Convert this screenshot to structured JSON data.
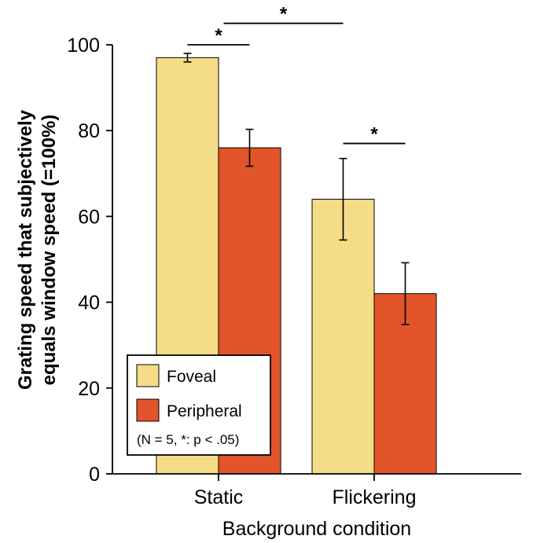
{
  "chart_data": {
    "type": "bar",
    "categories": [
      "Static",
      "Flickering"
    ],
    "series": [
      {
        "name": "Foveal",
        "values": [
          97,
          64
        ],
        "errors": [
          1,
          9.5
        ]
      },
      {
        "name": "Peripheral",
        "values": [
          76,
          42
        ],
        "errors": [
          4.3,
          7.2
        ]
      }
    ],
    "xlabel": "Background condition",
    "ylabel": [
      "Grating speed that subjectively",
      "equals window speed (=100%)"
    ],
    "ylim": [
      0,
      100
    ],
    "yticks": [
      0,
      20,
      40,
      60,
      80,
      100
    ],
    "grid": false,
    "legend": {
      "placement": "bottom-left",
      "note": "(N = 5, *: p < .05)"
    },
    "significance": [
      {
        "label": "*",
        "between": "Static Foveal vs Static Peripheral",
        "y": 100
      },
      {
        "label": "*",
        "between": "Static vs Flickering",
        "y": 105
      },
      {
        "label": "*",
        "between": "Flickering Foveal vs Flickering Peripheral",
        "y": 77
      }
    ],
    "colors": {
      "Foveal": "#f5dc87",
      "Peripheral": "#e2552b",
      "axis": "#000000"
    }
  }
}
